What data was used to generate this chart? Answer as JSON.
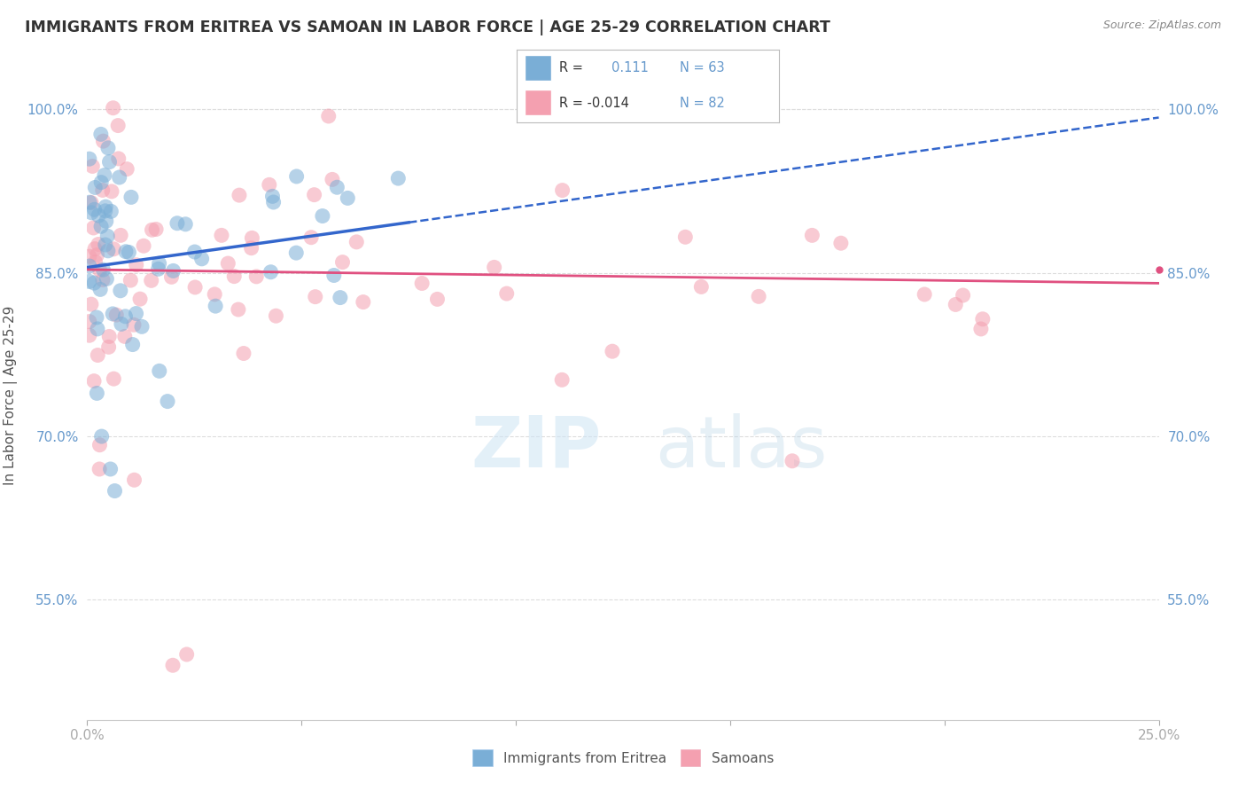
{
  "title": "IMMIGRANTS FROM ERITREA VS SAMOAN IN LABOR FORCE | AGE 25-29 CORRELATION CHART",
  "source": "Source: ZipAtlas.com",
  "ylabel": "In Labor Force | Age 25-29",
  "xlim": [
    0.0,
    0.25
  ],
  "ylim": [
    0.44,
    1.035
  ],
  "yticks": [
    0.55,
    0.7,
    0.85,
    1.0
  ],
  "ytick_labels": [
    "55.0%",
    "70.0%",
    "85.0%",
    "100.0%"
  ],
  "xticks": [
    0.0,
    0.05,
    0.1,
    0.15,
    0.2,
    0.25
  ],
  "xtick_labels": [
    "0.0%",
    "",
    "",
    "",
    "",
    "25.0%"
  ],
  "background_color": "#ffffff",
  "grid_color": "#dddddd",
  "title_color": "#333333",
  "axis_label_color": "#555555",
  "tick_color": "#6699cc",
  "blue_color": "#7aaed6",
  "pink_color": "#f4a0b0",
  "blue_line_color": "#3366cc",
  "pink_line_color": "#e05080",
  "blue_line_solid_end": 0.075,
  "blue_intercept": 0.855,
  "blue_slope": 0.55,
  "pink_intercept": 0.853,
  "pink_slope": -0.05
}
